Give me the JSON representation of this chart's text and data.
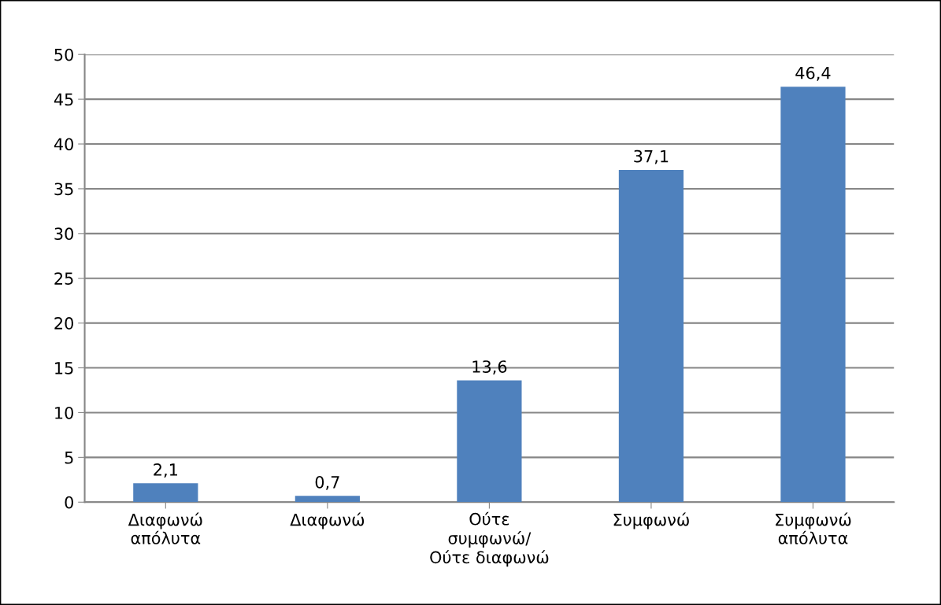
{
  "chart_data": {
    "type": "bar",
    "categories": [
      "Διαφωνώ\nαπόλυτα",
      "Διαφωνώ",
      "Ούτε\nσυμφωνώ/\nΟύτε διαφωνώ",
      "Συμφωνώ",
      "Συμφωνώ\nαπόλυτα"
    ],
    "values": [
      2.1,
      0.7,
      13.6,
      37.1,
      46.4
    ],
    "value_labels": [
      "2,1",
      "0,7",
      "13,6",
      "37,1",
      "46,4"
    ],
    "color": "#4f81bd",
    "ylim": [
      0,
      50
    ],
    "yticks": [
      0,
      5,
      10,
      15,
      20,
      25,
      30,
      35,
      40,
      45,
      50
    ],
    "grid": "y",
    "legend": false
  }
}
